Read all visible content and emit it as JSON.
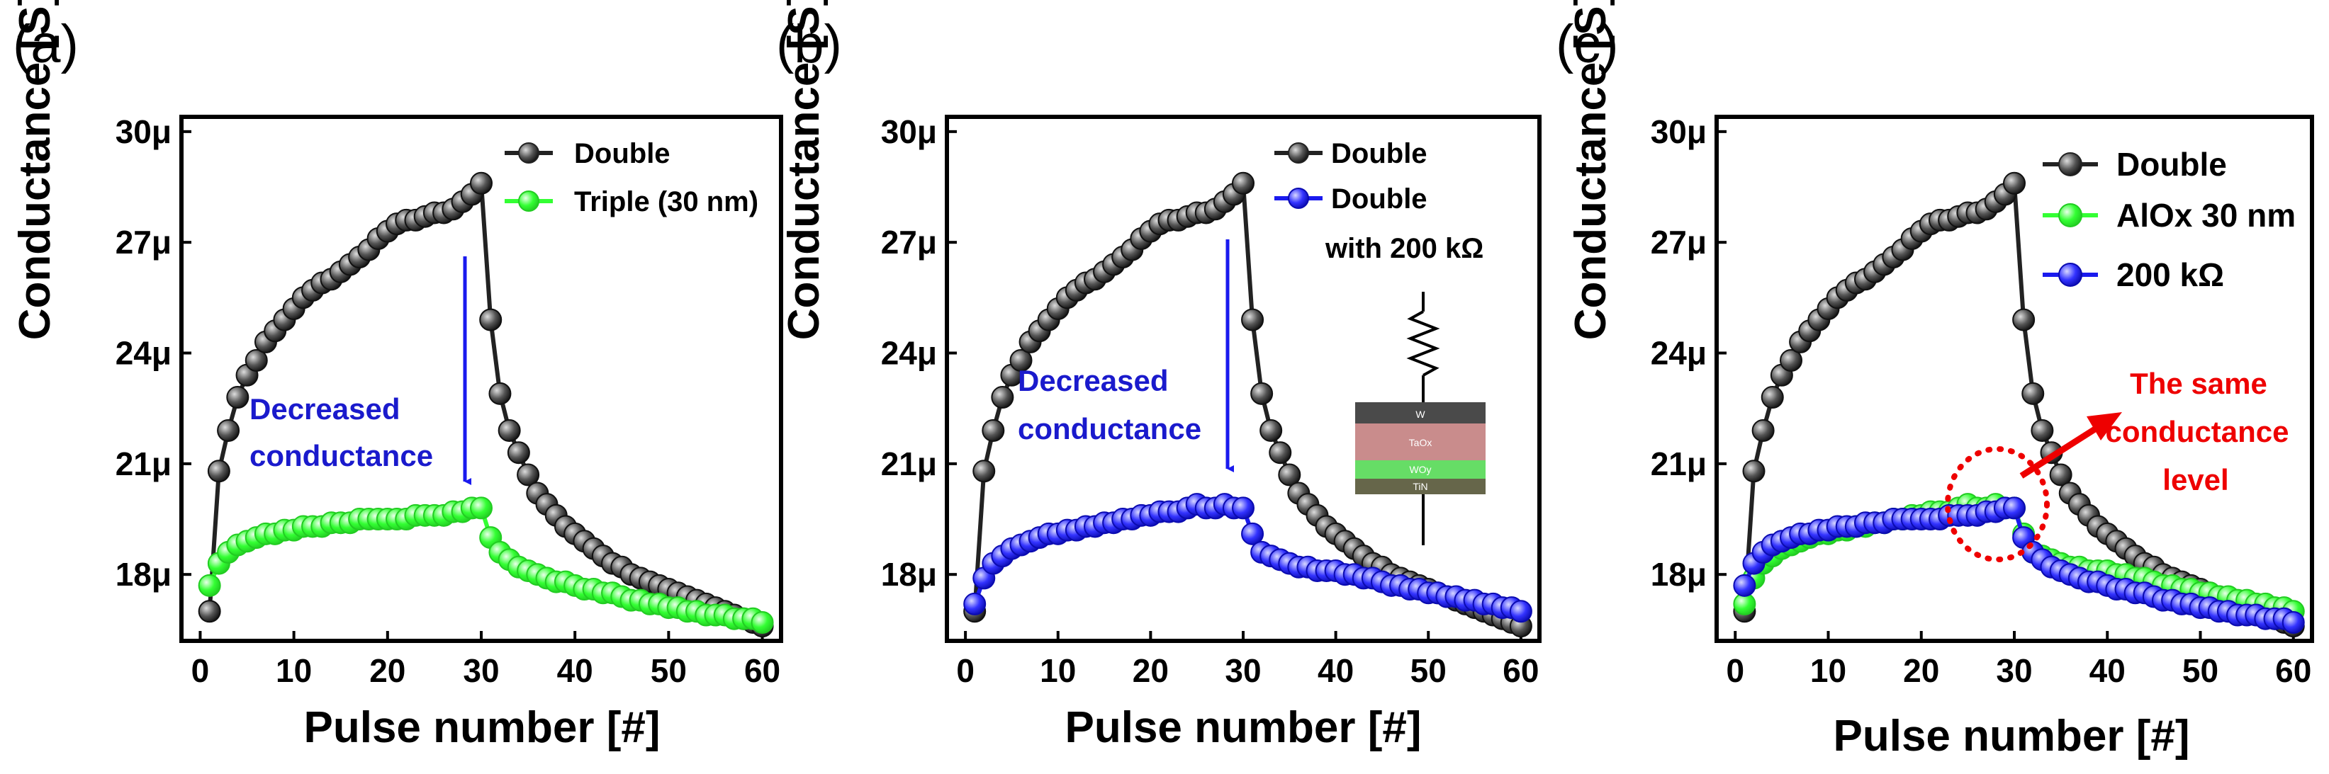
{
  "figure": {
    "colors": {
      "black": "#222222",
      "green": "#33ff33",
      "blue": "#1a1aee",
      "red": "#ee0000",
      "annotation_blue": "#1a1acc"
    }
  },
  "chart_data": [
    {
      "type": "line",
      "panel_label": "(a)",
      "xlabel": "Pulse number [#]",
      "ylabel": "Conductance [S]",
      "xlim": [
        -2,
        62
      ],
      "ylim": [
        16.2,
        30.4
      ],
      "xticks": [
        0,
        10,
        20,
        30,
        40,
        50,
        60
      ],
      "yticks": [
        18,
        21,
        24,
        27,
        30
      ],
      "ytick_labels": [
        "18μ",
        "21μ",
        "24μ",
        "27μ",
        "30μ"
      ],
      "legend": [
        "Double",
        "Triple (30 nm)"
      ],
      "series": [
        {
          "name": "Double",
          "color": "#222222",
          "x": [
            1,
            2,
            3,
            4,
            5,
            6,
            7,
            8,
            9,
            10,
            11,
            12,
            13,
            14,
            15,
            16,
            17,
            18,
            19,
            20,
            21,
            22,
            23,
            24,
            25,
            26,
            27,
            28,
            29,
            30,
            31,
            32,
            33,
            34,
            35,
            36,
            37,
            38,
            39,
            40,
            41,
            42,
            43,
            44,
            45,
            46,
            47,
            48,
            49,
            50,
            51,
            52,
            53,
            54,
            55,
            56,
            57,
            58,
            59,
            60
          ],
          "values": [
            17.0,
            20.8,
            21.9,
            22.8,
            23.4,
            23.8,
            24.3,
            24.6,
            24.9,
            25.2,
            25.5,
            25.7,
            25.9,
            26.0,
            26.2,
            26.4,
            26.6,
            26.8,
            27.1,
            27.3,
            27.5,
            27.6,
            27.6,
            27.7,
            27.8,
            27.8,
            27.9,
            28.1,
            28.3,
            28.6,
            24.9,
            22.9,
            21.9,
            21.3,
            20.7,
            20.2,
            19.9,
            19.6,
            19.3,
            19.1,
            18.9,
            18.7,
            18.5,
            18.3,
            18.2,
            18.0,
            17.9,
            17.8,
            17.7,
            17.6,
            17.5,
            17.4,
            17.3,
            17.2,
            17.1,
            17.0,
            16.9,
            16.8,
            16.7,
            16.6
          ]
        },
        {
          "name": "Triple (30 nm)",
          "color": "#33ff33",
          "x": [
            1,
            2,
            3,
            4,
            5,
            6,
            7,
            8,
            9,
            10,
            11,
            12,
            13,
            14,
            15,
            16,
            17,
            18,
            19,
            20,
            21,
            22,
            23,
            24,
            25,
            26,
            27,
            28,
            29,
            30,
            31,
            32,
            33,
            34,
            35,
            36,
            37,
            38,
            39,
            40,
            41,
            42,
            43,
            44,
            45,
            46,
            47,
            48,
            49,
            50,
            51,
            52,
            53,
            54,
            55,
            56,
            57,
            58,
            59,
            60
          ],
          "values": [
            17.7,
            18.3,
            18.6,
            18.8,
            18.9,
            19.0,
            19.1,
            19.1,
            19.2,
            19.2,
            19.3,
            19.3,
            19.3,
            19.4,
            19.4,
            19.4,
            19.5,
            19.5,
            19.5,
            19.5,
            19.5,
            19.5,
            19.6,
            19.6,
            19.6,
            19.6,
            19.7,
            19.7,
            19.8,
            19.8,
            19.0,
            18.6,
            18.4,
            18.2,
            18.1,
            18.0,
            17.9,
            17.8,
            17.8,
            17.7,
            17.6,
            17.6,
            17.5,
            17.5,
            17.4,
            17.3,
            17.3,
            17.2,
            17.2,
            17.1,
            17.1,
            17.0,
            17.0,
            16.9,
            16.9,
            16.9,
            16.8,
            16.8,
            16.8,
            16.7
          ]
        }
      ],
      "annotations": {
        "arrow_text": [
          "Decreased",
          "conductance"
        ]
      }
    },
    {
      "type": "line",
      "panel_label": "(b)",
      "xlabel": "Pulse number [#]",
      "ylabel": "Conductance [S]",
      "xlim": [
        -2,
        62
      ],
      "ylim": [
        16.2,
        30.4
      ],
      "xticks": [
        0,
        10,
        20,
        30,
        40,
        50,
        60
      ],
      "yticks": [
        18,
        21,
        24,
        27,
        30
      ],
      "ytick_labels": [
        "18μ",
        "21μ",
        "24μ",
        "27μ",
        "30μ"
      ],
      "legend": [
        "Double",
        "Double",
        "with 200 kΩ"
      ],
      "series": [
        {
          "name": "Double",
          "color": "#222222",
          "x": [
            1,
            2,
            3,
            4,
            5,
            6,
            7,
            8,
            9,
            10,
            11,
            12,
            13,
            14,
            15,
            16,
            17,
            18,
            19,
            20,
            21,
            22,
            23,
            24,
            25,
            26,
            27,
            28,
            29,
            30,
            31,
            32,
            33,
            34,
            35,
            36,
            37,
            38,
            39,
            40,
            41,
            42,
            43,
            44,
            45,
            46,
            47,
            48,
            49,
            50,
            51,
            52,
            53,
            54,
            55,
            56,
            57,
            58,
            59,
            60
          ],
          "values": [
            17.0,
            20.8,
            21.9,
            22.8,
            23.4,
            23.8,
            24.3,
            24.6,
            24.9,
            25.2,
            25.5,
            25.7,
            25.9,
            26.0,
            26.2,
            26.4,
            26.6,
            26.8,
            27.1,
            27.3,
            27.5,
            27.6,
            27.6,
            27.7,
            27.8,
            27.8,
            27.9,
            28.1,
            28.3,
            28.6,
            24.9,
            22.9,
            21.9,
            21.3,
            20.7,
            20.2,
            19.9,
            19.6,
            19.3,
            19.1,
            18.9,
            18.7,
            18.5,
            18.3,
            18.2,
            18.0,
            17.9,
            17.8,
            17.7,
            17.6,
            17.5,
            17.4,
            17.3,
            17.2,
            17.1,
            17.0,
            16.9,
            16.8,
            16.7,
            16.6
          ]
        },
        {
          "name": "Double with 200 kΩ",
          "color": "#1a1aee",
          "x": [
            1,
            2,
            3,
            4,
            5,
            6,
            7,
            8,
            9,
            10,
            11,
            12,
            13,
            14,
            15,
            16,
            17,
            18,
            19,
            20,
            21,
            22,
            23,
            24,
            25,
            26,
            27,
            28,
            29,
            30,
            31,
            32,
            33,
            34,
            35,
            36,
            37,
            38,
            39,
            40,
            41,
            42,
            43,
            44,
            45,
            46,
            47,
            48,
            49,
            50,
            51,
            52,
            53,
            54,
            55,
            56,
            57,
            58,
            59,
            60
          ],
          "values": [
            17.2,
            17.9,
            18.3,
            18.5,
            18.7,
            18.8,
            18.9,
            19.0,
            19.1,
            19.1,
            19.2,
            19.2,
            19.3,
            19.3,
            19.4,
            19.4,
            19.5,
            19.5,
            19.6,
            19.6,
            19.7,
            19.7,
            19.7,
            19.8,
            19.9,
            19.8,
            19.8,
            19.9,
            19.8,
            19.8,
            19.1,
            18.6,
            18.5,
            18.4,
            18.3,
            18.2,
            18.2,
            18.1,
            18.1,
            18.1,
            18.0,
            18.0,
            17.9,
            17.9,
            17.8,
            17.7,
            17.7,
            17.6,
            17.6,
            17.5,
            17.5,
            17.4,
            17.4,
            17.3,
            17.3,
            17.2,
            17.2,
            17.1,
            17.1,
            17.0
          ]
        }
      ],
      "annotations": {
        "arrow_text": [
          "Decreased",
          "conductance"
        ]
      },
      "inset": {
        "resistor_layer_labels": [
          "W",
          "TaOx",
          "WOy",
          "TiN"
        ]
      }
    },
    {
      "type": "line",
      "panel_label": "(c)",
      "xlabel": "Pulse number [#]",
      "ylabel": "Conductance [S]",
      "xlim": [
        -2,
        62
      ],
      "ylim": [
        16.2,
        30.4
      ],
      "xticks": [
        0,
        10,
        20,
        30,
        40,
        50,
        60
      ],
      "yticks": [
        18,
        21,
        24,
        27,
        30
      ],
      "ytick_labels": [
        "18μ",
        "21μ",
        "24μ",
        "27μ",
        "30μ"
      ],
      "legend": [
        "Double",
        "AlOx 30 nm",
        "200 kΩ"
      ],
      "series": [
        {
          "name": "Double",
          "color": "#222222",
          "x": [
            1,
            2,
            3,
            4,
            5,
            6,
            7,
            8,
            9,
            10,
            11,
            12,
            13,
            14,
            15,
            16,
            17,
            18,
            19,
            20,
            21,
            22,
            23,
            24,
            25,
            26,
            27,
            28,
            29,
            30,
            31,
            32,
            33,
            34,
            35,
            36,
            37,
            38,
            39,
            40,
            41,
            42,
            43,
            44,
            45,
            46,
            47,
            48,
            49,
            50,
            51,
            52,
            53,
            54,
            55,
            56,
            57,
            58,
            59,
            60
          ],
          "values": [
            17.0,
            20.8,
            21.9,
            22.8,
            23.4,
            23.8,
            24.3,
            24.6,
            24.9,
            25.2,
            25.5,
            25.7,
            25.9,
            26.0,
            26.2,
            26.4,
            26.6,
            26.8,
            27.1,
            27.3,
            27.5,
            27.6,
            27.6,
            27.7,
            27.8,
            27.8,
            27.9,
            28.1,
            28.3,
            28.6,
            24.9,
            22.9,
            21.9,
            21.3,
            20.7,
            20.2,
            19.9,
            19.6,
            19.3,
            19.1,
            18.9,
            18.7,
            18.5,
            18.3,
            18.2,
            18.0,
            17.9,
            17.8,
            17.7,
            17.6,
            17.5,
            17.4,
            17.3,
            17.2,
            17.1,
            17.0,
            16.9,
            16.8,
            16.7,
            16.6
          ]
        },
        {
          "name": "AlOx 30 nm",
          "color": "#33ff33",
          "x": [
            1,
            2,
            3,
            4,
            5,
            6,
            7,
            8,
            9,
            10,
            11,
            12,
            13,
            14,
            15,
            16,
            17,
            18,
            19,
            20,
            21,
            22,
            23,
            24,
            25,
            26,
            27,
            28,
            29,
            30,
            31,
            32,
            33,
            34,
            35,
            36,
            37,
            38,
            39,
            40,
            41,
            42,
            43,
            44,
            45,
            46,
            47,
            48,
            49,
            50,
            51,
            52,
            53,
            54,
            55,
            56,
            57,
            58,
            59,
            60
          ],
          "values": [
            17.2,
            17.9,
            18.3,
            18.5,
            18.7,
            18.8,
            18.9,
            19.0,
            19.1,
            19.1,
            19.2,
            19.2,
            19.3,
            19.3,
            19.4,
            19.4,
            19.5,
            19.5,
            19.6,
            19.6,
            19.7,
            19.7,
            19.7,
            19.8,
            19.9,
            19.8,
            19.8,
            19.9,
            19.8,
            19.8,
            19.1,
            18.6,
            18.5,
            18.4,
            18.3,
            18.2,
            18.2,
            18.1,
            18.1,
            18.1,
            18.0,
            18.0,
            17.9,
            17.9,
            17.8,
            17.7,
            17.7,
            17.6,
            17.6,
            17.5,
            17.5,
            17.4,
            17.4,
            17.3,
            17.3,
            17.2,
            17.2,
            17.1,
            17.1,
            17.0
          ]
        },
        {
          "name": "200 kΩ",
          "color": "#1a1aee",
          "x": [
            1,
            2,
            3,
            4,
            5,
            6,
            7,
            8,
            9,
            10,
            11,
            12,
            13,
            14,
            15,
            16,
            17,
            18,
            19,
            20,
            21,
            22,
            23,
            24,
            25,
            26,
            27,
            28,
            29,
            30,
            31,
            32,
            33,
            34,
            35,
            36,
            37,
            38,
            39,
            40,
            41,
            42,
            43,
            44,
            45,
            46,
            47,
            48,
            49,
            50,
            51,
            52,
            53,
            54,
            55,
            56,
            57,
            58,
            59,
            60
          ],
          "values": [
            17.7,
            18.3,
            18.6,
            18.8,
            18.9,
            19.0,
            19.1,
            19.1,
            19.2,
            19.2,
            19.3,
            19.3,
            19.3,
            19.4,
            19.4,
            19.4,
            19.5,
            19.5,
            19.5,
            19.5,
            19.5,
            19.5,
            19.6,
            19.6,
            19.6,
            19.6,
            19.7,
            19.7,
            19.8,
            19.8,
            19.0,
            18.6,
            18.4,
            18.2,
            18.1,
            18.0,
            17.9,
            17.8,
            17.8,
            17.7,
            17.6,
            17.6,
            17.5,
            17.5,
            17.4,
            17.3,
            17.3,
            17.2,
            17.2,
            17.1,
            17.1,
            17.0,
            17.0,
            16.9,
            16.9,
            16.9,
            16.8,
            16.8,
            16.8,
            16.7
          ]
        }
      ],
      "annotations": {
        "red_text": [
          "The same",
          "conductance",
          "level"
        ]
      }
    }
  ]
}
